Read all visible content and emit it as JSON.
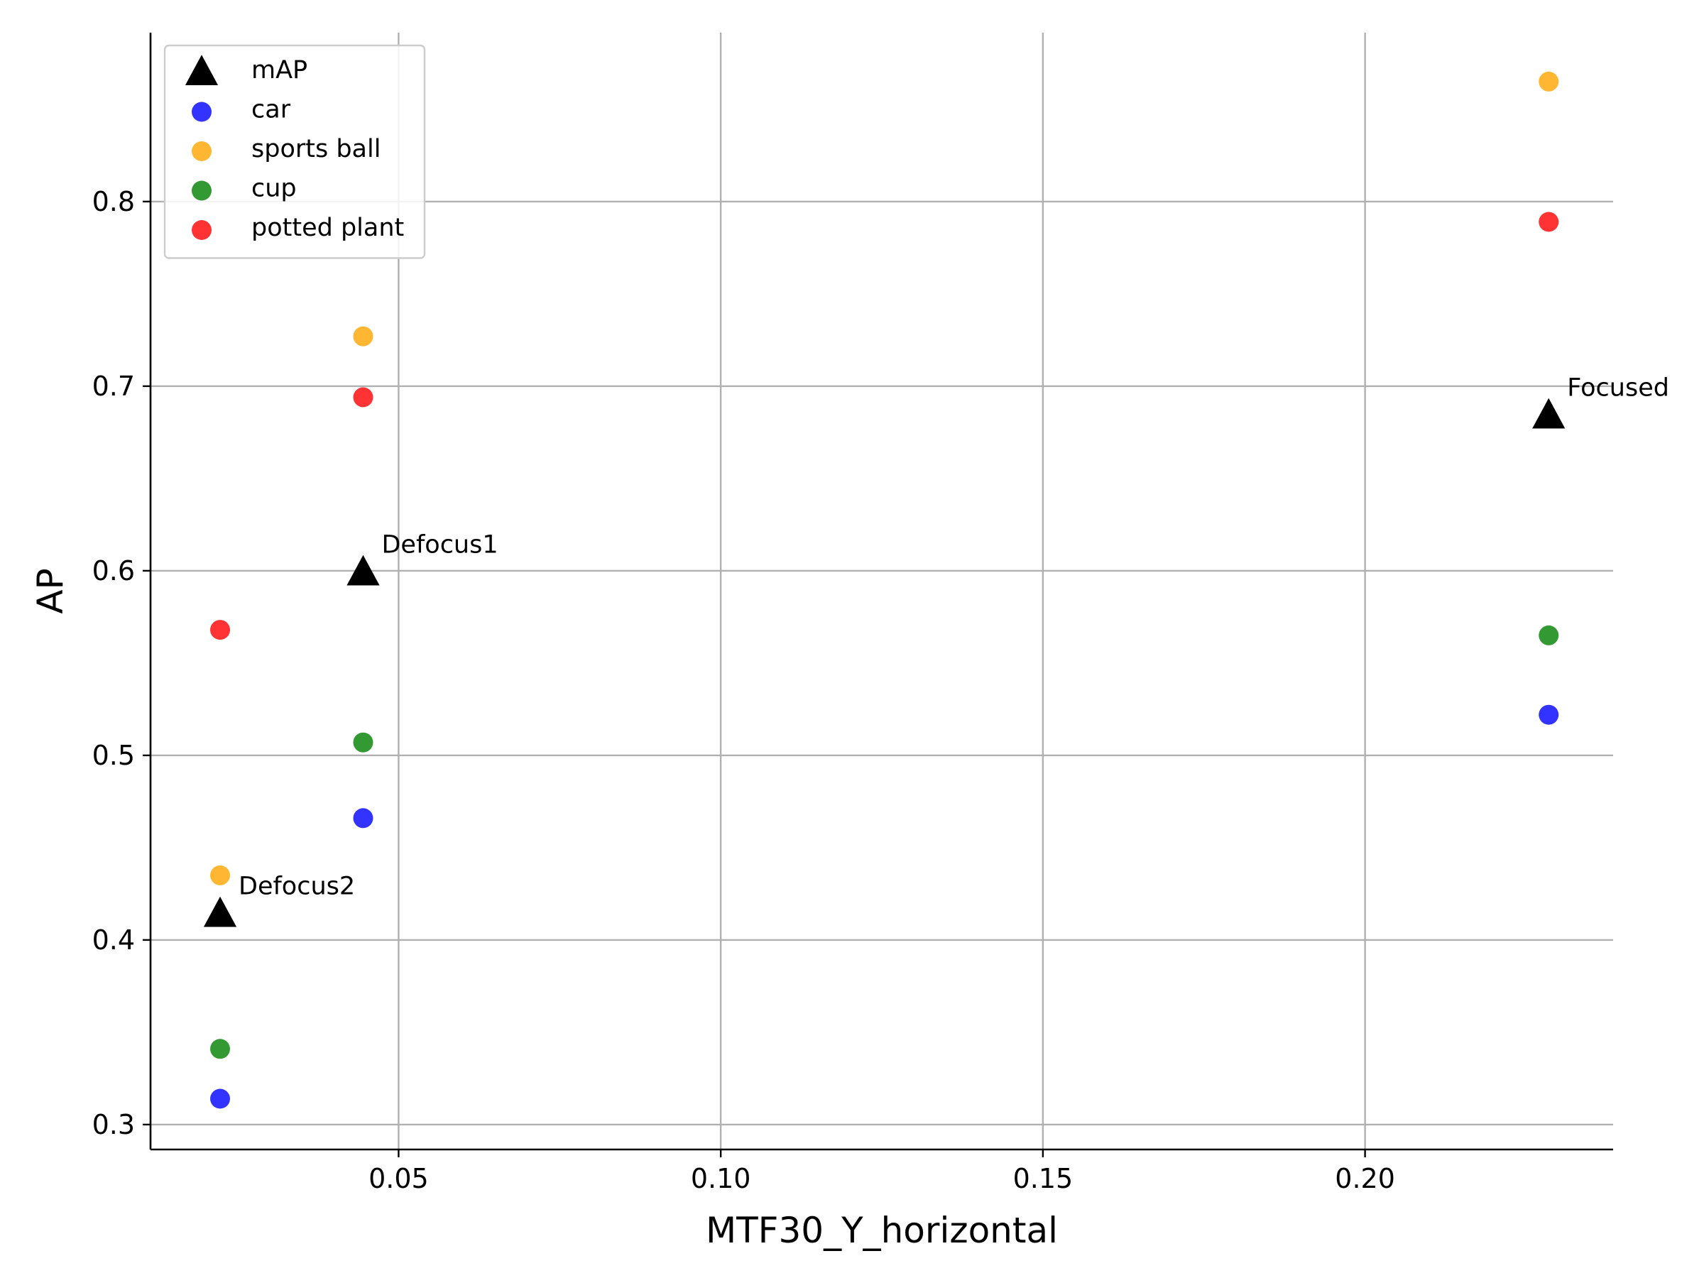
{
  "chart_data": {
    "type": "scatter",
    "title": "",
    "xlabel": "MTF30_Y_horizontal",
    "ylabel": "AP",
    "xlim": [
      0.0115,
      0.2385
    ],
    "ylim": [
      0.2865,
      0.8915
    ],
    "xticks": [
      0.05,
      0.1,
      0.15,
      0.2
    ],
    "xtick_labels": [
      "0.05",
      "0.10",
      "0.15",
      "0.20"
    ],
    "yticks": [
      0.3,
      0.4,
      0.5,
      0.6,
      0.7,
      0.8
    ],
    "ytick_labels": [
      "0.3",
      "0.4",
      "0.5",
      "0.6",
      "0.7",
      "0.8"
    ],
    "grid": true,
    "legend_position": "top-left",
    "series": [
      {
        "name": "mAP",
        "marker": "triangle",
        "color": "#000000",
        "points": [
          [
            0.0223,
            0.414
          ],
          [
            0.0445,
            0.599
          ],
          [
            0.2285,
            0.684
          ]
        ]
      },
      {
        "name": "car",
        "marker": "circle",
        "color": "#0000ff",
        "points": [
          [
            0.0223,
            0.314
          ],
          [
            0.0445,
            0.466
          ],
          [
            0.2285,
            0.522
          ]
        ]
      },
      {
        "name": "sports ball",
        "marker": "circle",
        "color": "#ffa500",
        "points": [
          [
            0.0223,
            0.435
          ],
          [
            0.0445,
            0.727
          ],
          [
            0.2285,
            0.865
          ]
        ]
      },
      {
        "name": "cup",
        "marker": "circle",
        "color": "#008000",
        "points": [
          [
            0.0223,
            0.341
          ],
          [
            0.0445,
            0.507
          ],
          [
            0.2285,
            0.565
          ]
        ]
      },
      {
        "name": "potted plant",
        "marker": "circle",
        "color": "#ff0000",
        "points": [
          [
            0.0223,
            0.568
          ],
          [
            0.0445,
            0.694
          ],
          [
            0.2285,
            0.789
          ]
        ]
      }
    ],
    "annotations": [
      {
        "text": "Defocus2",
        "x": 0.0223,
        "y": 0.414
      },
      {
        "text": "Defocus1",
        "x": 0.0445,
        "y": 0.599
      },
      {
        "text": "Focused",
        "x": 0.2285,
        "y": 0.684
      }
    ]
  }
}
